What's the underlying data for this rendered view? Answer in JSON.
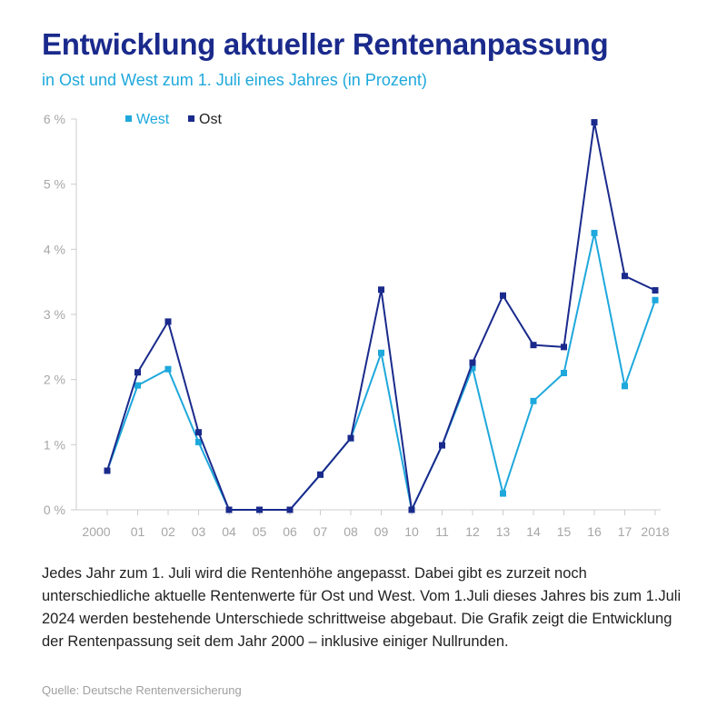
{
  "header": {
    "title": "Entwicklung aktueller Rentenanpassung",
    "subtitle": "in Ost und West zum 1. Juli eines Jahres (in Prozent)"
  },
  "description": "Jedes Jahr zum 1. Juli wird die Rentenhöhe angepasst. Dabei gibt es zurzeit noch unterschiedliche aktuelle Rentenwerte für Ost und West. Vom 1.Juli dieses Jahres bis zum 1.Juli 2024 werden bestehende Unterschiede schrittweise abgebaut. Die Grafik zeigt die Entwicklung der Rentenpassung seit dem Jahr 2000 – inklusive einiger Nullrunden.",
  "source": "Quelle: Deutsche Rentenversicherung",
  "colors": {
    "west": "#1ea8dc",
    "ost": "#1a2a8c",
    "axis": "#cccccc",
    "ticks": "#a6a6a6"
  },
  "chart_data": {
    "type": "line",
    "categories": [
      "2000",
      "01",
      "02",
      "03",
      "04",
      "05",
      "06",
      "07",
      "08",
      "09",
      "10",
      "11",
      "12",
      "13",
      "14",
      "15",
      "16",
      "17",
      "2018"
    ],
    "y_tick_labels": [
      "0 %",
      "1 %",
      "2 %",
      "3 %",
      "4 %",
      "5 %",
      "6 %"
    ],
    "ylim": [
      0,
      6
    ],
    "grid": false,
    "legend_position": "top-left",
    "series": [
      {
        "name": "West",
        "color": "#1ea8dc",
        "values": [
          0.6,
          1.91,
          2.16,
          1.04,
          0,
          0,
          0,
          0.54,
          1.1,
          2.41,
          0,
          0.99,
          2.18,
          0.25,
          1.67,
          2.1,
          4.25,
          1.9,
          3.22
        ]
      },
      {
        "name": "Ost",
        "color": "#1a2a8c",
        "values": [
          0.6,
          2.11,
          2.89,
          1.19,
          0,
          0,
          0,
          0.54,
          1.1,
          3.38,
          0,
          0.99,
          2.26,
          3.29,
          2.53,
          2.5,
          5.95,
          3.59,
          3.37
        ]
      }
    ]
  }
}
